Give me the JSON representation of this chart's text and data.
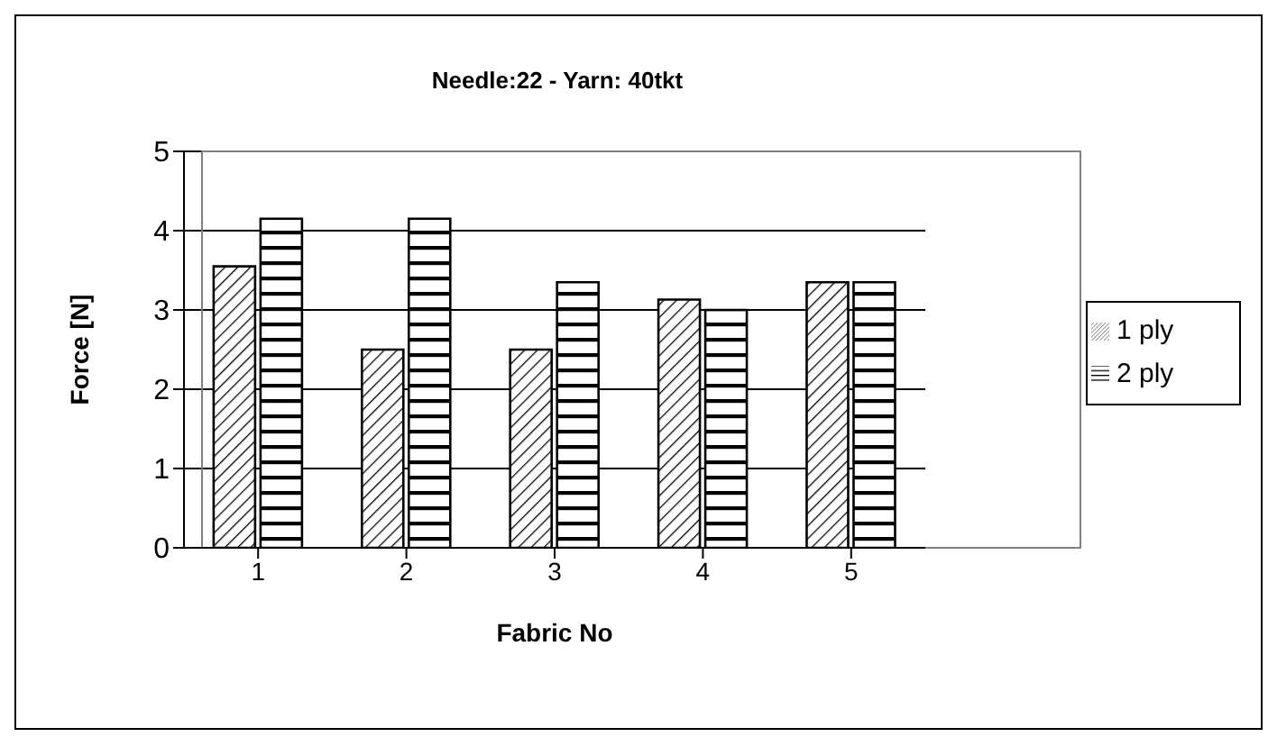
{
  "chart_data": {
    "type": "bar",
    "title": "Needle:22 - Yarn: 40tkt",
    "xlabel": "Fabric No",
    "ylabel": "Force [N]",
    "categories": [
      "1",
      "2",
      "3",
      "4",
      "5"
    ],
    "series": [
      {
        "name": "1 ply",
        "color": "#000000",
        "values": [
          3.55,
          2.5,
          2.5,
          3.13,
          3.35
        ]
      },
      {
        "name": "2 ply",
        "color": "#000000",
        "values": [
          4.15,
          4.15,
          3.35,
          3.0,
          3.35
        ]
      }
    ],
    "ylim": [
      0,
      5
    ],
    "yticks": [
      0,
      1,
      2,
      3,
      4,
      5
    ],
    "grid": "y",
    "legend": "right"
  }
}
